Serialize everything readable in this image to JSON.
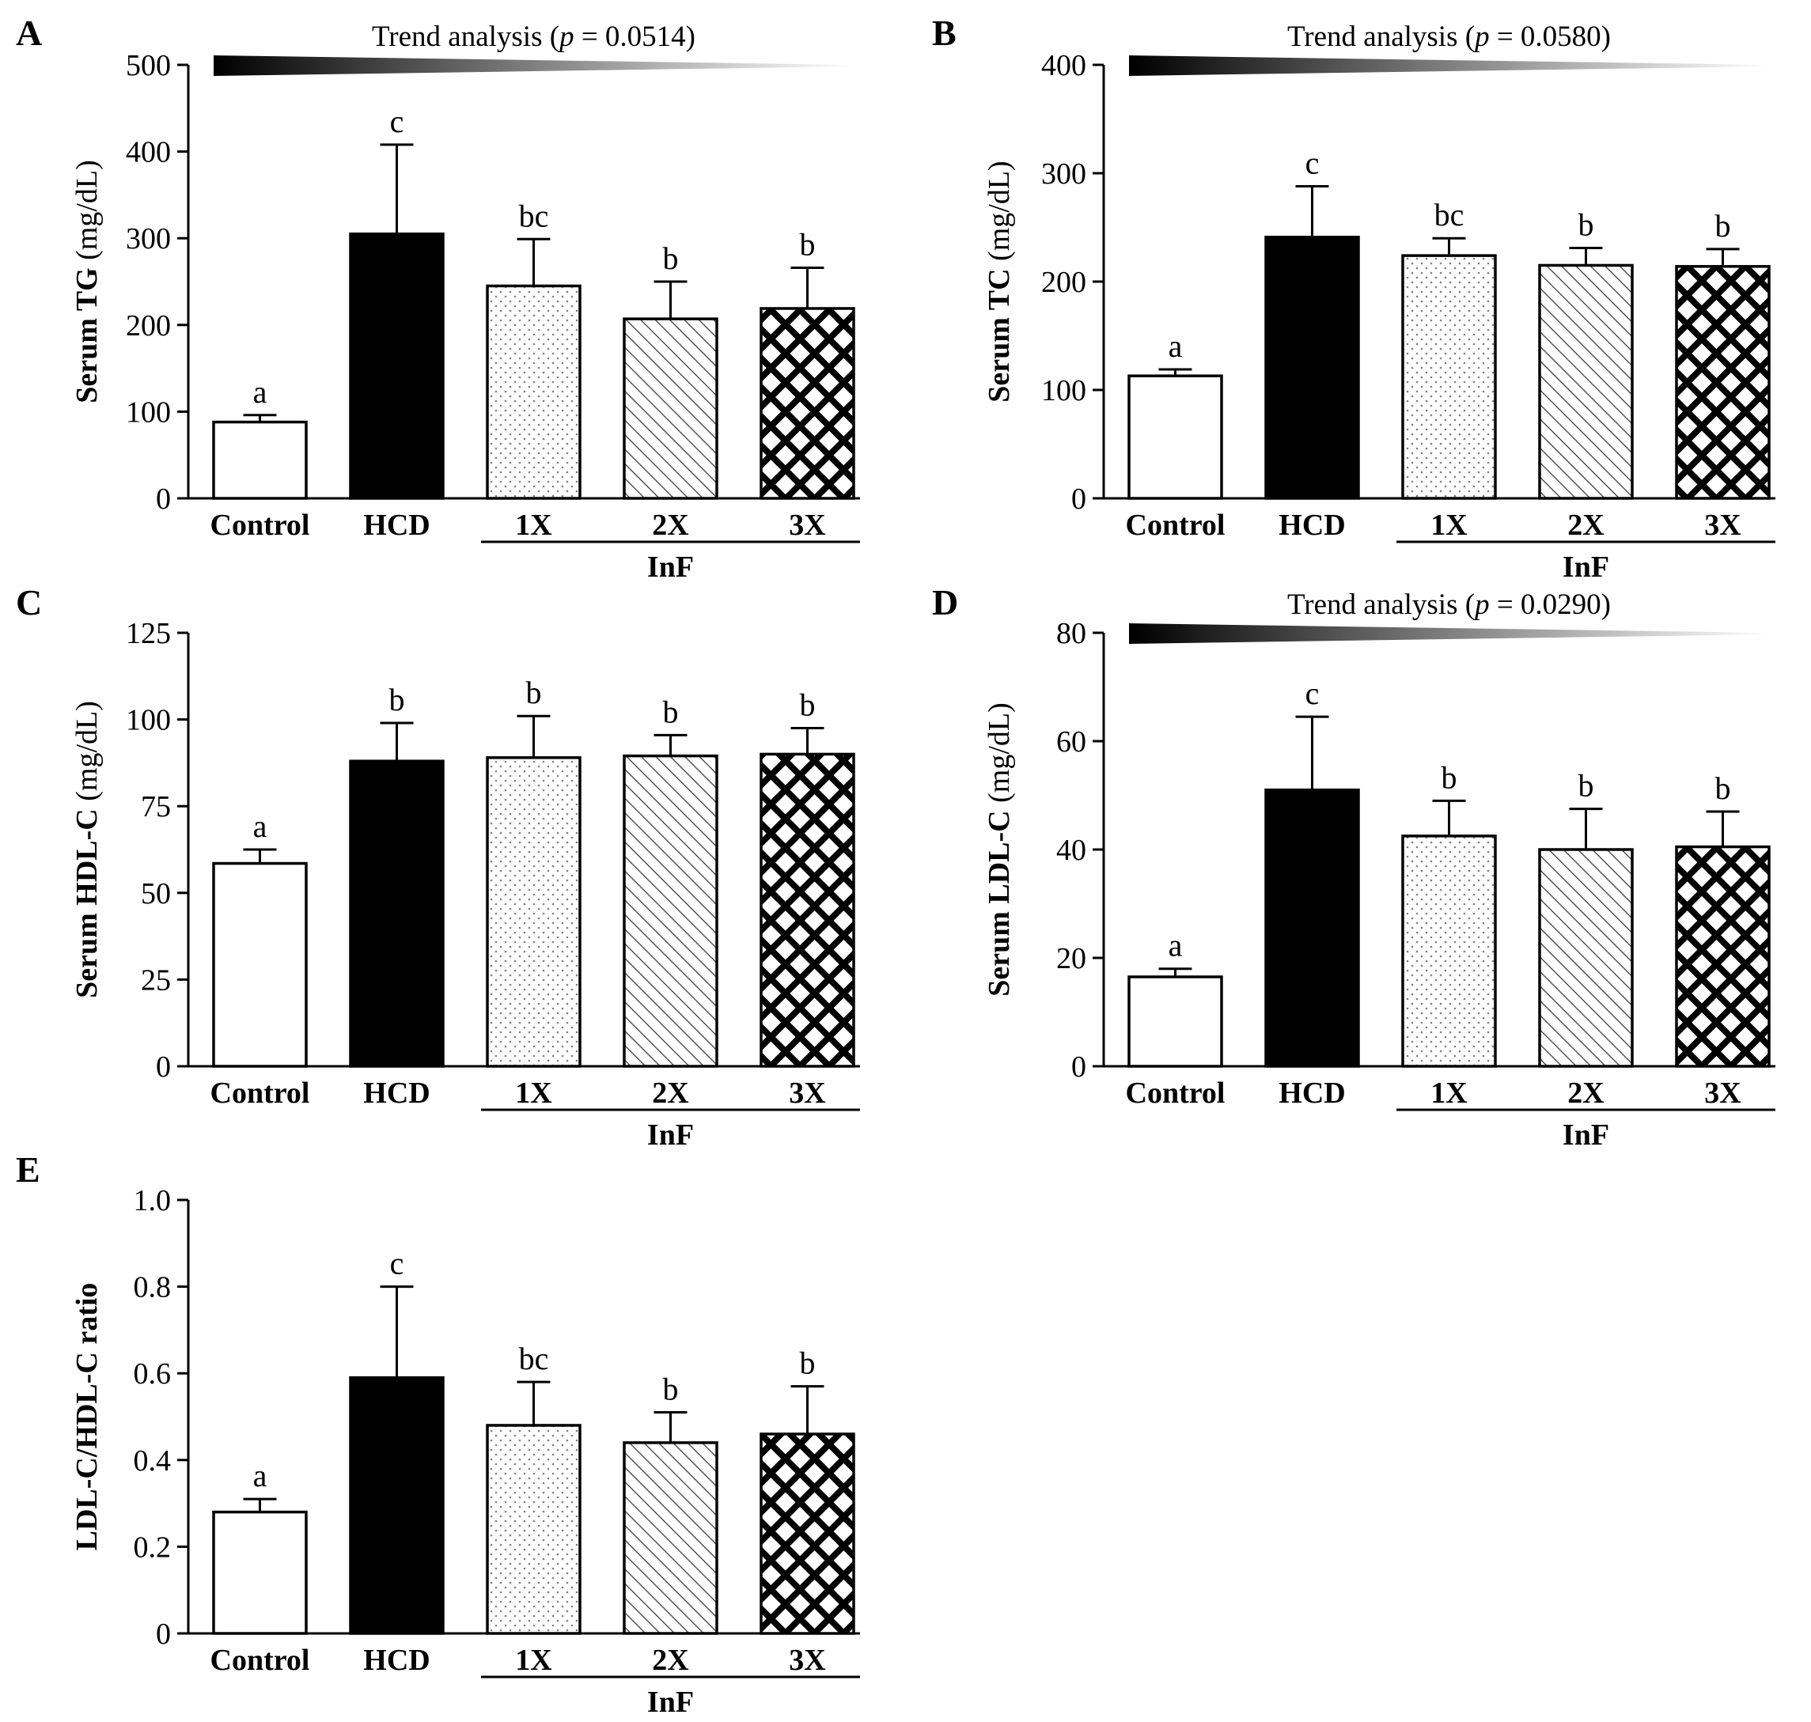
{
  "figure": {
    "category_labels": [
      "Control",
      "HCD",
      "1X",
      "2X",
      "3X"
    ],
    "group_label": "InF",
    "colors": {
      "ink": "#000000",
      "background": "#ffffff",
      "stipple": "#808080",
      "hatch": "#555555"
    },
    "patterns": [
      "white",
      "black",
      "dots",
      "hatch",
      "checker"
    ]
  },
  "chart_data": [
    {
      "type": "bar",
      "panel": "A",
      "ylabel_bold": "Serum TG",
      "ylabel_unit": " (mg/dL)",
      "ylim": [
        0,
        500
      ],
      "yticks": [
        0,
        100,
        200,
        300,
        400,
        500
      ],
      "categories": [
        "Control",
        "HCD",
        "1X",
        "2X",
        "3X"
      ],
      "values": [
        88,
        305,
        245,
        207,
        219
      ],
      "errors": [
        8,
        103,
        54,
        43,
        47
      ],
      "significance": [
        "a",
        "c",
        "bc",
        "b",
        "b"
      ],
      "trend": {
        "prefix": "Trend analysis (",
        "p_symbol": "p",
        "p_value": " = 0.0514)"
      }
    },
    {
      "type": "bar",
      "panel": "B",
      "ylabel_bold": "Serum TC",
      "ylabel_unit": " (mg/dL)",
      "ylim": [
        0,
        400
      ],
      "yticks": [
        0,
        100,
        200,
        300,
        400
      ],
      "categories": [
        "Control",
        "HCD",
        "1X",
        "2X",
        "3X"
      ],
      "values": [
        113,
        241,
        224,
        215,
        214
      ],
      "errors": [
        6,
        47,
        16,
        16,
        16
      ],
      "significance": [
        "a",
        "c",
        "bc",
        "b",
        "b"
      ],
      "trend": {
        "prefix": "Trend analysis (",
        "p_symbol": "p",
        "p_value": " = 0.0580)"
      }
    },
    {
      "type": "bar",
      "panel": "C",
      "ylabel_bold": "Serum HDL-C",
      "ylabel_unit": " (mg/dL)",
      "ylim": [
        0,
        125
      ],
      "yticks": [
        0,
        25,
        50,
        75,
        100,
        125
      ],
      "categories": [
        "Control",
        "HCD",
        "1X",
        "2X",
        "3X"
      ],
      "values": [
        58.5,
        88,
        89,
        89.5,
        90
      ],
      "errors": [
        4,
        11,
        12,
        6,
        7.5
      ],
      "significance": [
        "a",
        "b",
        "b",
        "b",
        "b"
      ]
    },
    {
      "type": "bar",
      "panel": "D",
      "ylabel_bold": "Serum LDL-C",
      "ylabel_unit": " (mg/dL)",
      "ylim": [
        0,
        80
      ],
      "yticks": [
        0,
        20,
        40,
        60,
        80
      ],
      "categories": [
        "Control",
        "HCD",
        "1X",
        "2X",
        "3X"
      ],
      "values": [
        16.5,
        51,
        42.5,
        40,
        40.5
      ],
      "errors": [
        1.5,
        13.5,
        6.5,
        7.5,
        6.5
      ],
      "significance": [
        "a",
        "c",
        "b",
        "b",
        "b"
      ],
      "trend": {
        "prefix": "Trend analysis (",
        "p_symbol": "p",
        "p_value": " = 0.0290)"
      }
    },
    {
      "type": "bar",
      "panel": "E",
      "ylabel_bold": "LDL-C/HDL-C ratio",
      "ylabel_unit": "",
      "ylim": [
        0,
        1.0
      ],
      "yticks": [
        "0",
        "0.2",
        "0.4",
        "0.6",
        "0.8",
        "1.0"
      ],
      "categories": [
        "Control",
        "HCD",
        "1X",
        "2X",
        "3X"
      ],
      "values": [
        0.28,
        0.59,
        0.48,
        0.44,
        0.46
      ],
      "errors": [
        0.03,
        0.21,
        0.1,
        0.07,
        0.11
      ],
      "significance": [
        "a",
        "c",
        "bc",
        "b",
        "b"
      ]
    }
  ]
}
